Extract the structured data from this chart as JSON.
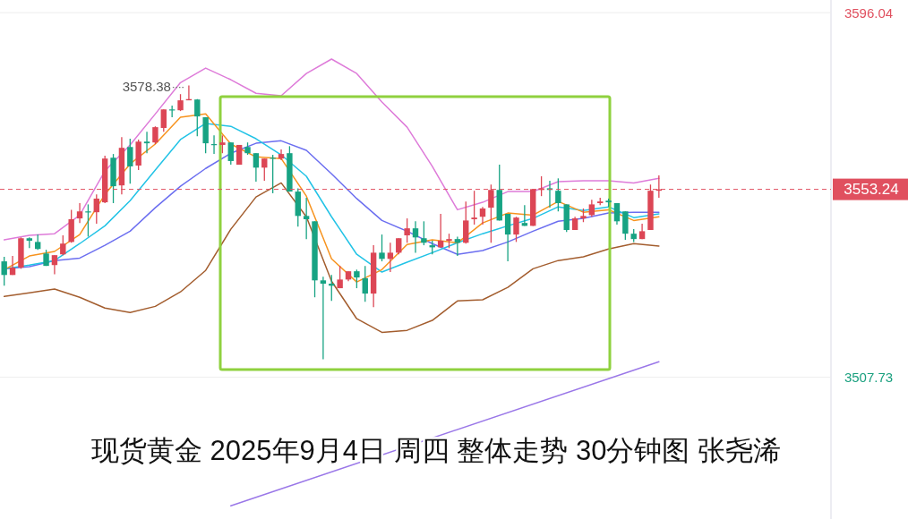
{
  "chart_data": {
    "type": "candlestick",
    "title": "现货黄金 2025年9月4日 周四 整体走势 30分钟图 张尧浠",
    "categories": [
      null,
      null,
      null,
      null,
      null,
      null,
      null,
      null,
      null,
      null,
      null,
      null,
      null,
      null,
      null,
      null,
      null,
      null,
      null,
      null,
      null,
      null,
      null,
      null,
      null,
      null,
      null,
      null,
      null,
      null,
      null,
      null,
      null,
      null,
      null,
      null,
      null,
      null,
      null,
      null,
      null,
      null,
      null,
      null,
      null,
      null,
      null,
      null,
      null,
      null,
      null,
      null,
      null,
      null,
      null,
      null,
      null,
      null,
      null,
      null,
      null,
      null,
      null,
      null,
      null,
      null,
      null,
      null,
      null,
      null,
      null,
      null,
      null,
      null,
      null,
      null,
      null,
      null,
      null,
      null,
      null,
      null,
      null,
      null,
      null,
      null,
      null,
      null,
      null,
      null,
      null,
      null,
      null,
      null,
      null,
      null,
      null,
      null,
      null
    ],
    "ohlc": [
      [
        3535.8,
        3536.9,
        3529.9,
        3532.5
      ],
      [
        3532.5,
        3537.1,
        3532.5,
        3534.3
      ],
      [
        3534.3,
        3541.6,
        3534.0,
        3541.4
      ],
      [
        3541.4,
        3541.6,
        3539.0,
        3540.8
      ],
      [
        3540.5,
        3542.3,
        3538.6,
        3538.8
      ],
      [
        3537.7,
        3538.6,
        3534.7,
        3534.7
      ],
      [
        3534.9,
        3537.3,
        3532.7,
        3537.3
      ],
      [
        3537.5,
        3542.1,
        3537.3,
        3540.1
      ],
      [
        3540.5,
        3548.3,
        3540.3,
        3546.0
      ],
      [
        3546.2,
        3549.9,
        3545.1,
        3547.9
      ],
      [
        3547.9,
        3549.6,
        3541.8,
        3547.7
      ],
      [
        3547.7,
        3552.0,
        3544.9,
        3551.0
      ],
      [
        3550.1,
        3561.4,
        3549.9,
        3560.7
      ],
      [
        3560.9,
        3561.8,
        3549.9,
        3554.0
      ],
      [
        3554.2,
        3565.9,
        3552.0,
        3563.3
      ],
      [
        3563.5,
        3565.5,
        3554.6,
        3558.8
      ],
      [
        3559.0,
        3565.3,
        3557.9,
        3564.8
      ],
      [
        3564.8,
        3567.2,
        3562.0,
        3564.4
      ],
      [
        3564.6,
        3568.5,
        3564.2,
        3568.3
      ],
      [
        3568.1,
        3572.6,
        3567.2,
        3572.6
      ],
      [
        3572.6,
        3573.5,
        3570.7,
        3572.4
      ],
      [
        3572.4,
        3576.3,
        3572.2,
        3574.8
      ],
      [
        3574.8,
        3578.38,
        3574.8,
        3575.1
      ],
      [
        3575.0,
        3575.1,
        3566.1,
        3570.9
      ],
      [
        3570.7,
        3570.7,
        3562.0,
        3564.4
      ],
      [
        3564.2,
        3566.3,
        3561.8,
        3564.0
      ],
      [
        3564.0,
        3566.3,
        3562.0,
        3564.6
      ],
      [
        3564.6,
        3564.6,
        3559.2,
        3560.1
      ],
      [
        3559.2,
        3564.0,
        3559.2,
        3564.0
      ],
      [
        3563.5,
        3564.6,
        3561.6,
        3562.0
      ],
      [
        3562.0,
        3562.0,
        3555.1,
        3558.5
      ],
      [
        3558.5,
        3560.7,
        3555.3,
        3560.7
      ],
      [
        3560.9,
        3561.6,
        3552.3,
        3560.7
      ],
      [
        3560.7,
        3562.9,
        3560.3,
        3561.8
      ],
      [
        3562.0,
        3563.7,
        3552.7,
        3552.7
      ],
      [
        3552.7,
        3553.5,
        3544.2,
        3546.8
      ],
      [
        3546.8,
        3551.2,
        3541.2,
        3546.0
      ],
      [
        3545.5,
        3545.5,
        3527.1,
        3531.2
      ],
      [
        3531.2,
        3532.1,
        3512.1,
        3530.4
      ],
      [
        3530.4,
        3532.5,
        3526.2,
        3529.9
      ],
      [
        3529.3,
        3534.7,
        3529.3,
        3531.4
      ],
      [
        3531.4,
        3533.4,
        3531.0,
        3533.4
      ],
      [
        3533.4,
        3533.8,
        3529.3,
        3531.9
      ],
      [
        3531.7,
        3534.7,
        3526.0,
        3528.0
      ],
      [
        3528.0,
        3539.7,
        3524.7,
        3537.9
      ],
      [
        3537.9,
        3542.3,
        3535.8,
        3536.4
      ],
      [
        3536.4,
        3540.3,
        3533.2,
        3537.9
      ],
      [
        3537.9,
        3541.4,
        3537.5,
        3541.4
      ],
      [
        3542.1,
        3546.2,
        3540.3,
        3543.8
      ],
      [
        3543.8,
        3545.5,
        3537.9,
        3541.6
      ],
      [
        3541.4,
        3545.5,
        3539.7,
        3540.3
      ],
      [
        3539.7,
        3540.8,
        3537.5,
        3539.2
      ],
      [
        3539.2,
        3547.3,
        3539.2,
        3540.8
      ],
      [
        3540.8,
        3542.5,
        3539.0,
        3541.2
      ],
      [
        3541.2,
        3541.8,
        3537.1,
        3540.3
      ],
      [
        3540.3,
        3550.3,
        3540.1,
        3545.7
      ],
      [
        3546.0,
        3552.9,
        3544.7,
        3546.4
      ],
      [
        3546.6,
        3549.0,
        3544.7,
        3548.6
      ],
      [
        3548.8,
        3554.4,
        3540.3,
        3553.1
      ],
      [
        3553.1,
        3559.2,
        3545.7,
        3545.7
      ],
      [
        3547.3,
        3547.3,
        3535.8,
        3542.3
      ],
      [
        3542.3,
        3546.6,
        3540.5,
        3546.4
      ],
      [
        3545.1,
        3549.4,
        3544.4,
        3544.4
      ],
      [
        3544.4,
        3553.3,
        3544.4,
        3553.3
      ],
      [
        3553.1,
        3556.4,
        3551.6,
        3553.5
      ],
      [
        3553.5,
        3555.3,
        3548.8,
        3553.1
      ],
      [
        3552.9,
        3555.9,
        3547.9,
        3549.9
      ],
      [
        3549.6,
        3549.6,
        3542.9,
        3543.4
      ],
      [
        3543.4,
        3546.6,
        3543.4,
        3546.2
      ],
      [
        3546.2,
        3548.6,
        3545.3,
        3546.8
      ],
      [
        3547.0,
        3550.7,
        3546.6,
        3549.6
      ],
      [
        3549.9,
        3551.2,
        3549.4,
        3550.3
      ],
      [
        3550.5,
        3551.0,
        3549.0,
        3550.1
      ],
      [
        3549.9,
        3549.9,
        3544.7,
        3545.5
      ],
      [
        3547.9,
        3547.9,
        3541.0,
        3542.5
      ],
      [
        3542.5,
        3543.6,
        3540.5,
        3541.2
      ],
      [
        3541.2,
        3544.9,
        3541.2,
        3543.1
      ],
      [
        3543.4,
        3554.4,
        3543.4,
        3552.9
      ],
      [
        3552.9,
        3556.6,
        3551.2,
        3553.24
      ],
      null,
      null,
      null,
      null,
      null,
      null,
      null,
      null,
      null,
      null,
      null,
      null,
      null,
      null,
      null,
      null,
      null,
      null,
      null,
      null
    ],
    "series": [
      {
        "type": "line",
        "color": "#de7bd9",
        "values": [
          3541.0,
          null,
          null,
          3542.1,
          null,
          null,
          3542.5,
          null,
          null,
          3547.0,
          null,
          null,
          3557.7,
          null,
          null,
          3564.0,
          null,
          null,
          3571.5,
          null,
          null,
          3579.1,
          null,
          null,
          3582.6,
          null,
          null,
          3579.8,
          null,
          null,
          3576.5,
          null,
          null,
          3575.9,
          null,
          null,
          3581.3,
          null,
          null,
          3584.8,
          null,
          null,
          3581.3,
          null,
          null,
          3574.4,
          null,
          null,
          3568.3,
          null,
          null,
          3558.8,
          null,
          null,
          3548.3,
          null,
          null,
          3550.1,
          null,
          null,
          3552.7,
          null,
          null,
          3552.7,
          null,
          null,
          3555.1,
          null,
          null,
          3555.3,
          null,
          null,
          3555.3,
          null,
          null,
          3554.8,
          null,
          null,
          3555.9,
          null,
          null,
          null,
          null,
          null,
          null,
          null,
          null,
          null,
          null,
          null,
          null,
          null,
          null,
          null,
          null,
          null,
          null,
          null,
          null
        ]
      },
      {
        "type": "line",
        "color": "#a35d2e",
        "values": [
          3527.3,
          null,
          null,
          3528.2,
          null,
          null,
          3529.1,
          null,
          null,
          3527.1,
          null,
          null,
          3524.5,
          null,
          null,
          3523.4,
          null,
          null,
          3524.9,
          null,
          null,
          3528.4,
          null,
          null,
          3533.6,
          null,
          null,
          3543.6,
          null,
          null,
          3551.4,
          null,
          null,
          3554.8,
          null,
          null,
          3546.6,
          null,
          null,
          3531.0,
          null,
          null,
          3521.9,
          null,
          null,
          3518.6,
          null,
          null,
          3519.1,
          null,
          null,
          3521.5,
          null,
          null,
          3526.2,
          null,
          null,
          3526.5,
          null,
          null,
          3529.5,
          null,
          null,
          3534.0,
          null,
          null,
          3536.0,
          null,
          null,
          3536.9,
          null,
          null,
          3538.8,
          null,
          null,
          3540.1,
          null,
          null,
          3539.5,
          null,
          null,
          null,
          null,
          null,
          null,
          null,
          null,
          null,
          null,
          null,
          null,
          null,
          null,
          null,
          null,
          null,
          null,
          null,
          null
        ]
      },
      {
        "type": "line",
        "color": "#6b6ef0",
        "values": [
          3534.0,
          null,
          null,
          3534.5,
          null,
          null,
          3536.0,
          null,
          null,
          3536.6,
          null,
          null,
          3539.7,
          null,
          null,
          3543.1,
          null,
          null,
          3548.8,
          null,
          null,
          3554.0,
          null,
          null,
          3558.3,
          null,
          null,
          3562.0,
          null,
          null,
          3564.4,
          null,
          null,
          3565.0,
          null,
          null,
          3562.7,
          null,
          null,
          3557.0,
          null,
          null,
          3551.0,
          null,
          null,
          3545.7,
          null,
          null,
          3543.1,
          null,
          null,
          3540.1,
          null,
          null,
          3537.5,
          null,
          null,
          3538.4,
          null,
          null,
          3540.5,
          null,
          null,
          3543.1,
          null,
          null,
          3545.5,
          null,
          null,
          3546.2,
          null,
          null,
          3547.5,
          null,
          null,
          3547.7,
          null,
          null,
          3547.7,
          null,
          null,
          null,
          null,
          null,
          null,
          null,
          null,
          null,
          null,
          null,
          null,
          null,
          null,
          null,
          null,
          null,
          null,
          null,
          null
        ]
      },
      {
        "type": "line",
        "color": "#22c3e6",
        "values": [
          3534.0,
          null,
          null,
          3534.9,
          null,
          null,
          3536.0,
          null,
          null,
          3540.1,
          null,
          null,
          3544.4,
          null,
          null,
          3550.5,
          null,
          null,
          3557.9,
          null,
          null,
          3565.3,
          null,
          null,
          3569.2,
          null,
          null,
          3568.5,
          null,
          null,
          3565.5,
          null,
          null,
          3561.6,
          null,
          null,
          3556.4,
          null,
          null,
          3546.6,
          null,
          null,
          3537.5,
          null,
          null,
          3533.2,
          null,
          null,
          3535.6,
          null,
          null,
          3537.9,
          null,
          null,
          3540.3,
          null,
          null,
          3542.5,
          null,
          null,
          3544.4,
          null,
          null,
          3546.2,
          null,
          null,
          3549.0,
          null,
          null,
          3548.1,
          null,
          null,
          3549.0,
          null,
          null,
          3546.4,
          null,
          null,
          3547.3,
          null,
          null,
          null,
          null,
          null,
          null,
          null,
          null,
          null,
          null,
          null,
          null,
          null,
          null,
          null,
          null,
          null,
          null,
          null,
          null
        ]
      },
      {
        "type": "line",
        "color": "#f7931e",
        "values": [
          3533.8,
          null,
          null,
          3537.1,
          null,
          null,
          3538.2,
          null,
          null,
          3542.3,
          null,
          null,
          3552.0,
          null,
          null,
          3559.4,
          null,
          null,
          3564.2,
          null,
          null,
          3570.7,
          null,
          null,
          3571.5,
          null,
          null,
          3564.2,
          null,
          null,
          3561.1,
          null,
          null,
          3560.7,
          null,
          null,
          3551.6,
          null,
          null,
          3536.4,
          null,
          null,
          3530.8,
          null,
          null,
          3533.8,
          null,
          null,
          3539.9,
          null,
          null,
          3541.0,
          null,
          null,
          3540.3,
          null,
          null,
          3545.1,
          null,
          null,
          3547.5,
          null,
          null,
          3547.0,
          null,
          null,
          3550.3,
          null,
          null,
          3547.7,
          null,
          null,
          3548.3,
          null,
          null,
          3545.7,
          null,
          null,
          3546.6,
          null,
          null,
          null,
          null,
          null,
          null,
          null,
          null,
          null,
          null,
          null,
          null,
          null,
          null,
          null,
          null,
          null,
          null,
          null,
          null
        ]
      },
      {
        "type": "line",
        "color": "#9a77e8",
        "values": [
          null,
          null,
          null,
          null,
          null,
          null,
          null,
          null,
          null,
          null,
          null,
          null,
          null,
          null,
          null,
          null,
          null,
          null,
          null,
          null,
          null,
          null,
          null,
          null,
          null,
          null,
          null,
          3476.6,
          null,
          null,
          null,
          null,
          null,
          null,
          null,
          null,
          null,
          null,
          null,
          null,
          null,
          null,
          null,
          null,
          null,
          null,
          null,
          null,
          null,
          null,
          null,
          null,
          null,
          null,
          null,
          null,
          null,
          null,
          null,
          null,
          null,
          null,
          null,
          null,
          null,
          null,
          null,
          null,
          null,
          null,
          null,
          null,
          null,
          null,
          null,
          null,
          null,
          null,
          3511.5,
          null,
          null,
          null,
          null,
          null,
          null,
          null,
          null,
          null,
          null,
          null,
          null,
          null,
          null,
          null,
          null,
          null,
          null,
          null,
          null
        ]
      }
    ],
    "ylim": [
      3473.4,
      3599.1
    ],
    "yticks": [
      3596.04,
      3507.73
    ],
    "grid": "y",
    "ref_lines": [
      {
        "axis": "y",
        "value": 3553.24,
        "label": "3553.24",
        "color": "#e0505f",
        "line_style": "dashed"
      }
    ],
    "annotations": [
      "3578.38"
    ]
  }
}
